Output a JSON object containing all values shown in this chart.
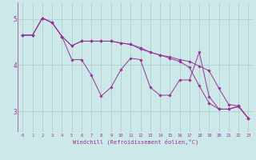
{
  "background_color": "#cce8e8",
  "grid_color": "#aacccc",
  "line_color": "#993399",
  "marker_color": "#993399",
  "xlabel": "Windchill (Refroidissement éolien,°C)",
  "xlabel_color": "#993399",
  "tick_color": "#993399",
  "xlim": [
    -0.5,
    23.5
  ],
  "ylim": [
    2.55,
    5.35
  ],
  "xticks": [
    0,
    1,
    2,
    3,
    4,
    5,
    6,
    7,
    8,
    9,
    10,
    11,
    12,
    13,
    14,
    15,
    16,
    17,
    18,
    19,
    20,
    21,
    22,
    23
  ],
  "yticks": [
    3,
    4,
    5
  ],
  "series": [
    [
      4.65,
      4.65,
      5.02,
      4.92,
      4.62,
      4.12,
      4.12,
      3.78,
      3.33,
      3.52,
      3.9,
      4.15,
      4.12,
      3.52,
      3.35,
      3.35,
      3.68,
      3.68,
      4.28,
      3.32,
      3.05,
      3.05,
      3.1,
      2.85
    ],
    [
      4.65,
      4.65,
      5.02,
      4.92,
      4.62,
      4.42,
      4.52,
      4.52,
      4.52,
      4.52,
      4.48,
      4.45,
      4.38,
      4.28,
      4.22,
      4.18,
      4.12,
      4.08,
      3.98,
      3.88,
      3.5,
      3.15,
      3.12,
      2.85
    ],
    [
      4.65,
      4.65,
      5.02,
      4.92,
      4.62,
      4.42,
      4.52,
      4.52,
      4.52,
      4.52,
      4.48,
      4.45,
      4.35,
      4.28,
      4.22,
      4.15,
      4.08,
      3.95,
      3.55,
      3.18,
      3.05,
      3.05,
      3.12,
      2.85
    ]
  ],
  "figwidth": 3.2,
  "figheight": 2.0,
  "dpi": 100
}
